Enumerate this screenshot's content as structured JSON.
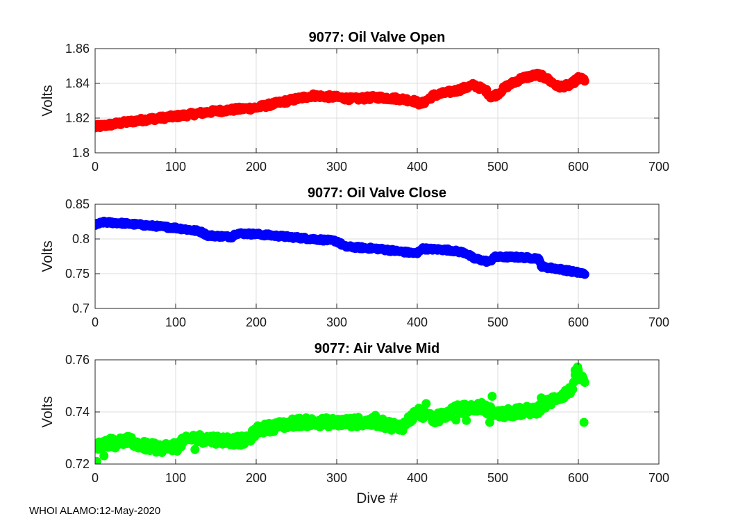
{
  "footer": "WHOI ALAMO:12-May-2020",
  "x_axis_label": "Dive #",
  "chart_data": [
    {
      "type": "scatter",
      "title": "9077: Oil Valve Open",
      "xlabel": "",
      "ylabel": "Volts",
      "xlim": [
        0,
        700
      ],
      "ylim": [
        1.8,
        1.86
      ],
      "xticks": [
        0,
        100,
        200,
        300,
        400,
        500,
        600,
        700
      ],
      "xtick_labels": [
        "0",
        "100",
        "200",
        "300",
        "400",
        "500",
        "600",
        "700"
      ],
      "yticks": [
        1.8,
        1.82,
        1.84,
        1.86
      ],
      "ytick_labels": [
        "1.8",
        "1.82",
        "1.84",
        "1.86"
      ],
      "grid": true,
      "color": "#ff0000",
      "series_trend": [
        [
          0,
          1.814
        ],
        [
          1,
          1.815
        ],
        [
          30,
          1.817
        ],
        [
          60,
          1.819
        ],
        [
          100,
          1.821
        ],
        [
          150,
          1.824
        ],
        [
          200,
          1.826
        ],
        [
          230,
          1.829
        ],
        [
          270,
          1.833
        ],
        [
          300,
          1.832
        ],
        [
          320,
          1.831
        ],
        [
          350,
          1.832
        ],
        [
          380,
          1.831
        ],
        [
          395,
          1.83
        ],
        [
          405,
          1.828
        ],
        [
          420,
          1.833
        ],
        [
          450,
          1.836
        ],
        [
          470,
          1.839
        ],
        [
          485,
          1.836
        ],
        [
          492,
          1.832
        ],
        [
          500,
          1.834
        ],
        [
          510,
          1.838
        ],
        [
          530,
          1.843
        ],
        [
          550,
          1.845
        ],
        [
          560,
          1.843
        ],
        [
          575,
          1.838
        ],
        [
          590,
          1.839
        ],
        [
          600,
          1.843
        ],
        [
          607,
          1.842
        ]
      ],
      "points": 608
    },
    {
      "type": "scatter",
      "title": "9077: Oil Valve Close",
      "xlabel": "",
      "ylabel": "Volts",
      "xlim": [
        0,
        700
      ],
      "ylim": [
        0.7,
        0.85
      ],
      "xticks": [
        0,
        100,
        200,
        300,
        400,
        500,
        600,
        700
      ],
      "xtick_labels": [
        "0",
        "100",
        "200",
        "300",
        "400",
        "500",
        "600",
        "700"
      ],
      "yticks": [
        0.7,
        0.75,
        0.8,
        0.85
      ],
      "ytick_labels": [
        "0.7",
        "0.75",
        "0.8",
        "0.85"
      ],
      "grid": true,
      "color": "#0000ff",
      "series_trend": [
        [
          0,
          0.82
        ],
        [
          10,
          0.824
        ],
        [
          30,
          0.823
        ],
        [
          60,
          0.82
        ],
        [
          100,
          0.816
        ],
        [
          130,
          0.811
        ],
        [
          140,
          0.805
        ],
        [
          170,
          0.803
        ],
        [
          175,
          0.808
        ],
        [
          200,
          0.807
        ],
        [
          250,
          0.802
        ],
        [
          300,
          0.797
        ],
        [
          310,
          0.789
        ],
        [
          350,
          0.786
        ],
        [
          400,
          0.779
        ],
        [
          405,
          0.786
        ],
        [
          440,
          0.784
        ],
        [
          460,
          0.78
        ],
        [
          470,
          0.772
        ],
        [
          490,
          0.767
        ],
        [
          495,
          0.774
        ],
        [
          520,
          0.774
        ],
        [
          550,
          0.772
        ],
        [
          555,
          0.76
        ],
        [
          580,
          0.756
        ],
        [
          607,
          0.75
        ]
      ],
      "points": 608
    },
    {
      "type": "scatter",
      "title": "9077: Air Valve Mid",
      "xlabel": "Dive #",
      "ylabel": "Volts",
      "xlim": [
        0,
        700
      ],
      "ylim": [
        0.72,
        0.76
      ],
      "xticks": [
        0,
        100,
        200,
        300,
        400,
        500,
        600,
        700
      ],
      "xtick_labels": [
        "0",
        "100",
        "200",
        "300",
        "400",
        "500",
        "600",
        "700"
      ],
      "yticks": [
        0.72,
        0.74,
        0.76
      ],
      "ytick_labels": [
        "0.72",
        "0.74",
        "0.76"
      ],
      "grid": true,
      "color": "#00ff00",
      "series_trend": [
        [
          0,
          0.726
        ],
        [
          10,
          0.728
        ],
        [
          40,
          0.729
        ],
        [
          60,
          0.727
        ],
        [
          80,
          0.726
        ],
        [
          100,
          0.727
        ],
        [
          120,
          0.73
        ],
        [
          170,
          0.729
        ],
        [
          190,
          0.729
        ],
        [
          200,
          0.733
        ],
        [
          250,
          0.736
        ],
        [
          300,
          0.736
        ],
        [
          350,
          0.736
        ],
        [
          380,
          0.734
        ],
        [
          400,
          0.74
        ],
        [
          420,
          0.737
        ],
        [
          450,
          0.741
        ],
        [
          480,
          0.742
        ],
        [
          500,
          0.739
        ],
        [
          550,
          0.741
        ],
        [
          570,
          0.745
        ],
        [
          590,
          0.748
        ],
        [
          598,
          0.754
        ],
        [
          607,
          0.752
        ]
      ],
      "outliers": [
        [
          2,
          0.721
        ],
        [
          490,
          0.736
        ],
        [
          493,
          0.746
        ],
        [
          596,
          0.756
        ],
        [
          600,
          0.756
        ],
        [
          607,
          0.736
        ]
      ],
      "points": 608
    }
  ]
}
